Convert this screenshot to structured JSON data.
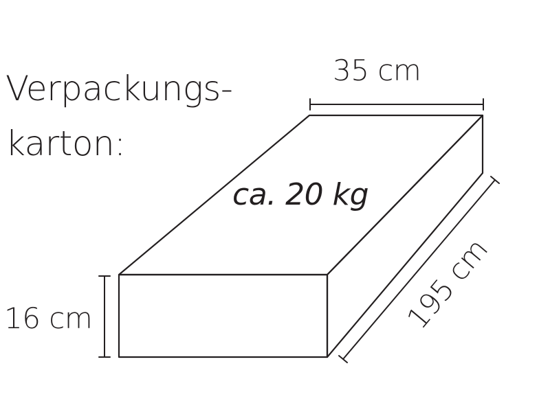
{
  "title": {
    "line1": "Verpackungs-",
    "line2": "karton:"
  },
  "weight_label": "ca. 20 kg",
  "dimensions": {
    "width": "35 cm",
    "length": "195 cm",
    "height": "16 cm"
  },
  "colors": {
    "ink": "#231f20",
    "background": "#ffffff"
  }
}
